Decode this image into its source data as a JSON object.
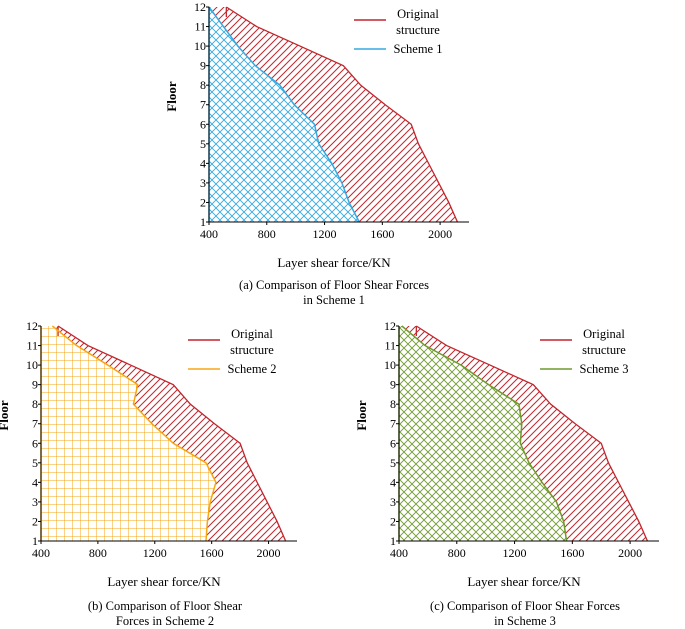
{
  "chart_data": [
    {
      "type": "area",
      "panel": "a",
      "caption": [
        "(a) Comparison of Floor Shear Forces",
        "in Scheme 1"
      ],
      "xlabel": "Layer shear force/KN",
      "ylabel": "Floor",
      "xlim": [
        400,
        2200
      ],
      "ylim": [
        1,
        12
      ],
      "xticks": [
        "400",
        "800",
        "1200",
        "1600",
        "2000"
      ],
      "yticks": [
        "1",
        "2",
        "3",
        "4",
        "5",
        "6",
        "7",
        "8",
        "9",
        "10",
        "11",
        "12"
      ],
      "legend_position": "top-right",
      "colors": {
        "original": "#c0262d",
        "scheme": "#35a9e0"
      },
      "series": [
        {
          "name": "Original structure",
          "floors": [
            1,
            2,
            3,
            4,
            5,
            6,
            7,
            8,
            9,
            10,
            11,
            12
          ],
          "values": [
            2120,
            2060,
            1990,
            1920,
            1850,
            1800,
            1620,
            1450,
            1330,
            1030,
            730,
            520
          ]
        },
        {
          "name": "Scheme 1",
          "floors": [
            1,
            2,
            3,
            4,
            5,
            6,
            7,
            8,
            9,
            10,
            11,
            12
          ],
          "values": [
            1440,
            1370,
            1320,
            1250,
            1160,
            1130,
            990,
            890,
            720,
            600,
            500,
            400
          ]
        }
      ],
      "legend": {
        "original": [
          "Original",
          "structure"
        ],
        "scheme": [
          "Scheme 1"
        ]
      }
    },
    {
      "type": "area",
      "panel": "b",
      "caption": [
        "(b) Comparison of Floor Shear",
        "Forces in Scheme 2"
      ],
      "xlabel": "Layer shear force/KN",
      "ylabel": "Floor",
      "xlim": [
        400,
        2200
      ],
      "ylim": [
        1,
        12
      ],
      "xticks": [
        "400",
        "800",
        "1200",
        "1600",
        "2000"
      ],
      "yticks": [
        "1",
        "2",
        "3",
        "4",
        "5",
        "6",
        "7",
        "8",
        "9",
        "10",
        "11",
        "12"
      ],
      "legend_position": "top-right",
      "colors": {
        "original": "#c0262d",
        "scheme": "#f5a713"
      },
      "series": [
        {
          "name": "Original structure",
          "floors": [
            1,
            2,
            3,
            4,
            5,
            6,
            7,
            8,
            9,
            10,
            11,
            12
          ],
          "values": [
            2120,
            2060,
            1990,
            1920,
            1850,
            1800,
            1620,
            1450,
            1330,
            1030,
            730,
            520
          ]
        },
        {
          "name": "Scheme 2",
          "floors": [
            1,
            2,
            3,
            4,
            5,
            6,
            7,
            8,
            9,
            10,
            11,
            12
          ],
          "values": [
            1560,
            1570,
            1590,
            1630,
            1560,
            1330,
            1180,
            1050,
            1080,
            870,
            650,
            480
          ]
        }
      ],
      "legend": {
        "original": [
          "Original",
          "structure"
        ],
        "scheme": [
          "Scheme 2"
        ]
      }
    },
    {
      "type": "area",
      "panel": "c",
      "caption": [
        "(c) Comparison of Floor Shear Forces",
        "in Scheme 3"
      ],
      "xlabel": "Layer shear force/KN",
      "ylabel": "Floor",
      "xlim": [
        400,
        2200
      ],
      "ylim": [
        1,
        12
      ],
      "xticks": [
        "400",
        "800",
        "1200",
        "1600",
        "2000"
      ],
      "yticks": [
        "1",
        "2",
        "3",
        "4",
        "5",
        "6",
        "7",
        "8",
        "9",
        "10",
        "11",
        "12"
      ],
      "legend_position": "top-right",
      "colors": {
        "original": "#c0262d",
        "scheme": "#6f9a2e"
      },
      "series": [
        {
          "name": "Original structure",
          "floors": [
            1,
            2,
            3,
            4,
            5,
            6,
            7,
            8,
            9,
            10,
            11,
            12
          ],
          "values": [
            2120,
            2060,
            1990,
            1920,
            1850,
            1800,
            1620,
            1450,
            1330,
            1030,
            730,
            520
          ]
        },
        {
          "name": "Scheme 3",
          "floors": [
            1,
            2,
            3,
            4,
            5,
            6,
            7,
            8,
            9,
            10,
            11,
            12
          ],
          "values": [
            1560,
            1540,
            1490,
            1390,
            1300,
            1240,
            1250,
            1230,
            1020,
            830,
            580,
            420
          ]
        }
      ],
      "legend": {
        "original": [
          "Original",
          "structure"
        ],
        "scheme": [
          "Scheme 3"
        ]
      }
    }
  ]
}
